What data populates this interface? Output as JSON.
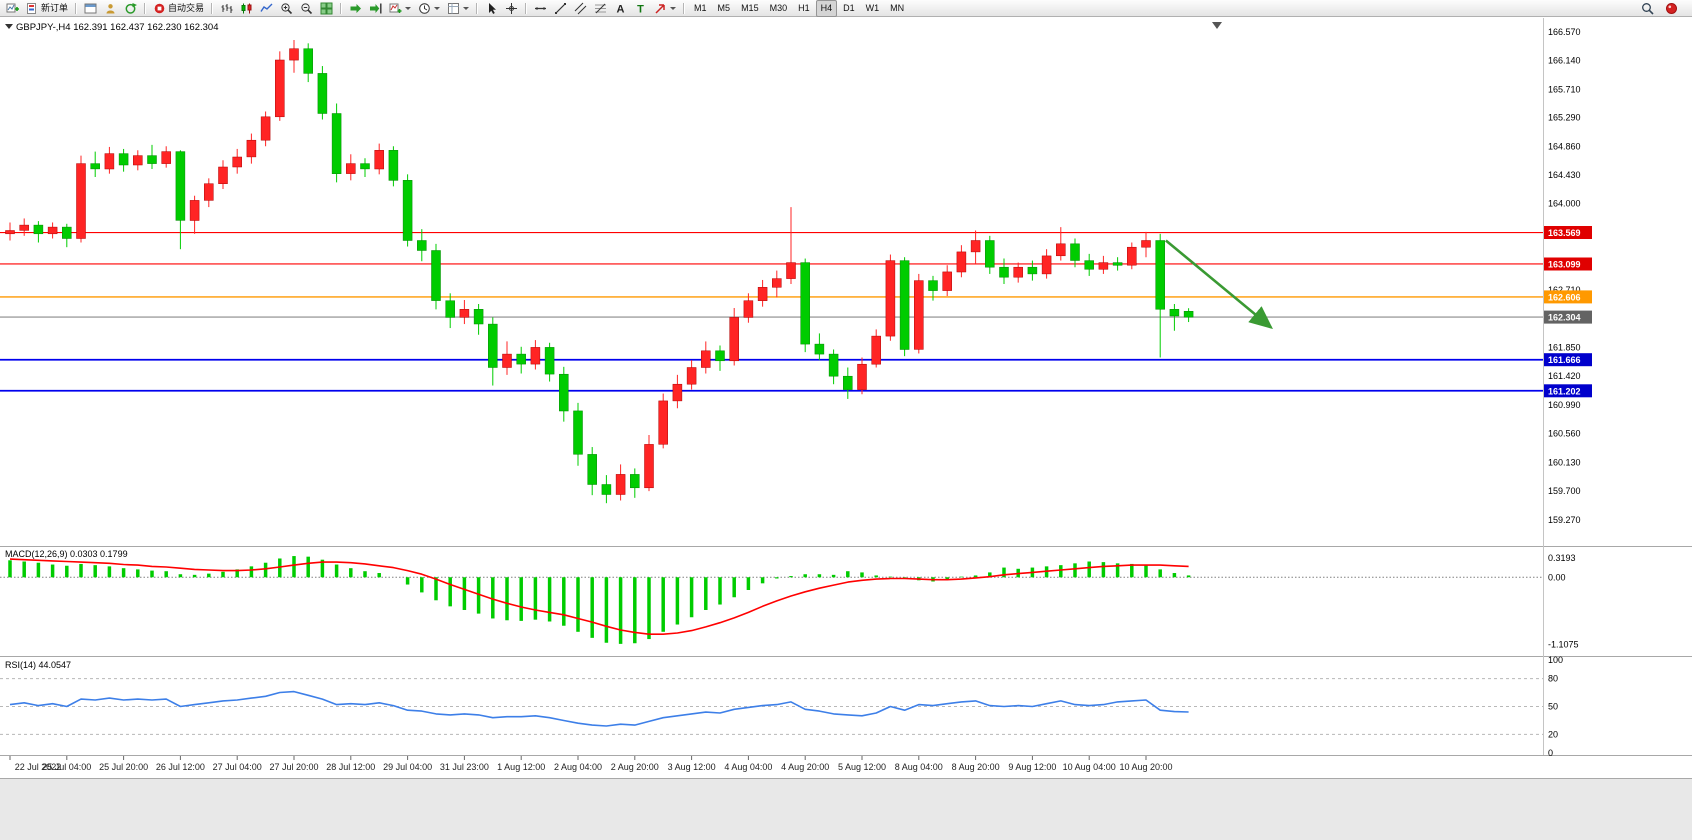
{
  "toolbar": {
    "items": [
      {
        "type": "icon",
        "name": "new-chart-button",
        "icon": "chart-plus"
      },
      {
        "type": "labeled",
        "name": "new-order-button",
        "icon": "new-order",
        "label": "新订单"
      },
      {
        "type": "sep"
      },
      {
        "type": "icon",
        "name": "market-watch-button",
        "icon": "market-watch"
      },
      {
        "type": "icon",
        "name": "navigator-button",
        "icon": "navigator"
      },
      {
        "type": "icon",
        "name": "terminal-button",
        "icon": "terminal"
      },
      {
        "type": "sep"
      },
      {
        "type": "labeled",
        "name": "autotrading-button",
        "icon": "autotrade",
        "label": "自动交易"
      },
      {
        "type": "sep"
      },
      {
        "type": "icon",
        "name": "bar-chart-button",
        "icon": "bars"
      },
      {
        "type": "icon",
        "name": "candlestick-button",
        "icon": "candles"
      },
      {
        "type": "icon",
        "name": "line-chart-button",
        "icon": "line"
      },
      {
        "type": "icon",
        "name": "zoom-in-button",
        "icon": "zoom-in"
      },
      {
        "type": "icon",
        "name": "zoom-out-button",
        "icon": "zoom-out"
      },
      {
        "type": "icon",
        "name": "tile-windows-button",
        "icon": "tile"
      },
      {
        "type": "sep"
      },
      {
        "type": "icon",
        "name": "auto-scroll-button",
        "icon": "auto-scroll"
      },
      {
        "type": "icon",
        "name": "chart-shift-button",
        "icon": "chart-shift"
      },
      {
        "type": "icon-drop",
        "name": "indicators-button",
        "icon": "indicators"
      },
      {
        "type": "icon-drop",
        "name": "periods-button",
        "icon": "clock"
      },
      {
        "type": "icon-drop",
        "name": "templates-button",
        "icon": "template"
      },
      {
        "type": "sep"
      },
      {
        "type": "icon",
        "name": "cursor-button",
        "icon": "cursor"
      },
      {
        "type": "icon",
        "name": "crosshair-button",
        "icon": "crosshair"
      },
      {
        "type": "sep"
      },
      {
        "type": "icon",
        "name": "horizontal-line-button",
        "icon": "hline"
      },
      {
        "type": "icon",
        "name": "trendline-button",
        "icon": "trendline"
      },
      {
        "type": "icon",
        "name": "channel-button",
        "icon": "channel"
      },
      {
        "type": "icon",
        "name": "fibonacci-button",
        "icon": "fibo"
      },
      {
        "type": "icon",
        "name": "text-button",
        "icon": "text-a"
      },
      {
        "type": "icon",
        "name": "text-label-button",
        "icon": "text-t"
      },
      {
        "type": "icon-drop",
        "name": "arrows-button",
        "icon": "arrows"
      },
      {
        "type": "sep"
      },
      {
        "type": "tf",
        "name": "tf-m1-button",
        "label": "M1"
      },
      {
        "type": "tf",
        "name": "tf-m5-button",
        "label": "M5"
      },
      {
        "type": "tf",
        "name": "tf-m15-button",
        "label": "M15"
      },
      {
        "type": "tf",
        "name": "tf-m30-button",
        "label": "M30"
      },
      {
        "type": "tf",
        "name": "tf-h1-button",
        "label": "H1"
      },
      {
        "type": "tf",
        "name": "tf-h4-button",
        "label": "H4",
        "active": true
      },
      {
        "type": "tf",
        "name": "tf-d1-button",
        "label": "D1"
      },
      {
        "type": "tf",
        "name": "tf-w1-button",
        "label": "W1"
      },
      {
        "type": "tf",
        "name": "tf-mn-button",
        "label": "MN"
      }
    ],
    "right_items": [
      {
        "name": "search-button",
        "icon": "search"
      },
      {
        "name": "community-button",
        "icon": "community"
      }
    ]
  },
  "chart": {
    "title": "GBPJPY-,H4 162.391 162.437 162.230 162.304",
    "symbol": "GBPJPY-",
    "timeframe": "H4"
  },
  "chart_data": {
    "type": "candlestick",
    "title": "GBPJPY-,H4 162.391 162.437 162.230 162.304",
    "ohlc_header": {
      "open": 162.391,
      "high": 162.437,
      "low": 162.23,
      "close": 162.304
    },
    "up_color": "#ff2424",
    "down_color": "#00cc00",
    "ylim": [
      158.88,
      166.734
    ],
    "candles": [
      [
        163.55,
        163.72,
        163.45,
        163.6
      ],
      [
        163.6,
        163.78,
        163.52,
        163.68
      ],
      [
        163.68,
        163.74,
        163.42,
        163.55
      ],
      [
        163.55,
        163.72,
        163.48,
        163.65
      ],
      [
        163.65,
        163.7,
        163.35,
        163.48
      ],
      [
        163.48,
        164.72,
        163.42,
        164.6
      ],
      [
        164.6,
        164.78,
        164.4,
        164.52
      ],
      [
        164.52,
        164.85,
        164.45,
        164.75
      ],
      [
        164.75,
        164.82,
        164.48,
        164.58
      ],
      [
        164.58,
        164.8,
        164.5,
        164.72
      ],
      [
        164.72,
        164.88,
        164.52,
        164.6
      ],
      [
        164.6,
        164.86,
        164.54,
        164.78
      ],
      [
        164.78,
        164.8,
        163.32,
        163.75
      ],
      [
        163.75,
        164.12,
        163.55,
        164.05
      ],
      [
        164.05,
        164.38,
        163.95,
        164.3
      ],
      [
        164.3,
        164.65,
        164.22,
        164.55
      ],
      [
        164.55,
        164.82,
        164.45,
        164.7
      ],
      [
        164.7,
        165.05,
        164.6,
        164.95
      ],
      [
        164.95,
        165.38,
        164.86,
        165.3
      ],
      [
        165.3,
        166.28,
        165.24,
        166.15
      ],
      [
        166.15,
        166.45,
        165.96,
        166.32
      ],
      [
        166.32,
        166.4,
        165.82,
        165.95
      ],
      [
        165.95,
        166.06,
        165.26,
        165.35
      ],
      [
        165.35,
        165.5,
        164.32,
        164.45
      ],
      [
        164.45,
        164.74,
        164.35,
        164.6
      ],
      [
        164.6,
        164.68,
        164.4,
        164.52
      ],
      [
        164.52,
        164.9,
        164.44,
        164.8
      ],
      [
        164.8,
        164.86,
        164.26,
        164.35
      ],
      [
        164.35,
        164.44,
        163.36,
        163.45
      ],
      [
        163.45,
        163.62,
        163.14,
        163.3
      ],
      [
        163.3,
        163.4,
        162.42,
        162.55
      ],
      [
        162.55,
        162.66,
        162.14,
        162.3
      ],
      [
        162.3,
        162.56,
        162.2,
        162.42
      ],
      [
        162.42,
        162.5,
        162.04,
        162.2
      ],
      [
        162.2,
        162.3,
        161.28,
        161.55
      ],
      [
        161.55,
        161.94,
        161.44,
        161.75
      ],
      [
        161.75,
        161.86,
        161.46,
        161.6
      ],
      [
        161.6,
        161.96,
        161.52,
        161.85
      ],
      [
        161.85,
        161.92,
        161.34,
        161.45
      ],
      [
        161.45,
        161.56,
        160.74,
        160.9
      ],
      [
        160.9,
        161.02,
        160.08,
        160.25
      ],
      [
        160.25,
        160.36,
        159.64,
        159.8
      ],
      [
        159.8,
        159.94,
        159.52,
        159.65
      ],
      [
        159.65,
        160.1,
        159.56,
        159.95
      ],
      [
        159.95,
        160.04,
        159.6,
        159.75
      ],
      [
        159.75,
        160.54,
        159.7,
        160.4
      ],
      [
        160.4,
        161.16,
        160.34,
        161.05
      ],
      [
        161.05,
        161.44,
        160.94,
        161.3
      ],
      [
        161.3,
        161.66,
        161.22,
        161.55
      ],
      [
        161.55,
        161.94,
        161.46,
        161.8
      ],
      [
        161.8,
        161.88,
        161.5,
        161.65
      ],
      [
        161.65,
        162.44,
        161.58,
        162.3
      ],
      [
        162.3,
        162.66,
        162.22,
        162.55
      ],
      [
        162.55,
        162.86,
        162.46,
        162.75
      ],
      [
        162.75,
        163.0,
        162.6,
        162.88
      ],
      [
        162.88,
        163.95,
        162.8,
        163.12
      ],
      [
        163.12,
        163.18,
        161.78,
        161.9
      ],
      [
        161.9,
        162.06,
        161.66,
        161.75
      ],
      [
        161.75,
        161.82,
        161.3,
        161.42
      ],
      [
        161.42,
        161.55,
        161.08,
        161.22
      ],
      [
        161.22,
        161.7,
        161.15,
        161.6
      ],
      [
        161.6,
        162.12,
        161.55,
        162.02
      ],
      [
        162.02,
        163.24,
        161.95,
        163.15
      ],
      [
        163.15,
        163.2,
        161.72,
        161.82
      ],
      [
        161.82,
        162.95,
        161.76,
        162.85
      ],
      [
        162.85,
        162.92,
        162.55,
        162.7
      ],
      [
        162.7,
        163.08,
        162.62,
        162.98
      ],
      [
        162.98,
        163.38,
        162.9,
        163.28
      ],
      [
        163.28,
        163.6,
        163.1,
        163.45
      ],
      [
        163.45,
        163.52,
        162.95,
        163.05
      ],
      [
        163.05,
        163.18,
        162.8,
        162.9
      ],
      [
        162.9,
        163.12,
        162.82,
        163.05
      ],
      [
        163.05,
        163.15,
        162.85,
        162.95
      ],
      [
        162.95,
        163.32,
        162.88,
        163.22
      ],
      [
        163.22,
        163.65,
        163.15,
        163.4
      ],
      [
        163.4,
        163.48,
        163.05,
        163.15
      ],
      [
        163.15,
        163.25,
        162.92,
        163.02
      ],
      [
        163.02,
        163.22,
        162.95,
        163.12
      ],
      [
        163.12,
        163.2,
        163.0,
        163.08
      ],
      [
        163.08,
        163.42,
        163.02,
        163.35
      ],
      [
        163.35,
        163.58,
        163.2,
        163.45
      ],
      [
        163.45,
        163.55,
        161.7,
        162.42
      ],
      [
        162.42,
        162.5,
        162.1,
        162.32
      ],
      [
        162.391,
        162.437,
        162.23,
        162.304
      ]
    ],
    "time_labels": [
      "22 Jul 2022",
      "25 Jul 04:00",
      "25 Jul 20:00",
      "26 Jul 12:00",
      "27 Jul 04:00",
      "27 Jul 20:00",
      "28 Jul 12:00",
      "29 Jul 04:00",
      "31 Jul 23:00",
      "1 Aug 12:00",
      "2 Aug 04:00",
      "2 Aug 20:00",
      "3 Aug 12:00",
      "4 Aug 04:00",
      "4 Aug 20:00",
      "5 Aug 12:00",
      "8 Aug 04:00",
      "8 Aug 20:00",
      "9 Aug 12:00",
      "10 Aug 04:00",
      "10 Aug 20:00"
    ],
    "label_every": 4,
    "price_axis_labels": [
      "166.570",
      "166.140",
      "165.710",
      "165.290",
      "164.860",
      "164.430",
      "164.000",
      "162.710",
      "161.850",
      "161.420",
      "160.990",
      "160.560",
      "160.130",
      "159.700",
      "159.270"
    ],
    "levels": [
      {
        "price": 163.569,
        "label": "163.569",
        "color": "#ff0000",
        "badge": "#e00000",
        "width": 1.1
      },
      {
        "price": 163.099,
        "label": "163.099",
        "color": "#ff0000",
        "badge": "#e00000",
        "width": 1.1
      },
      {
        "price": 162.606,
        "label": "162.606",
        "color": "#ff9900",
        "badge": "#ff9900",
        "width": 1.3
      },
      {
        "price": 162.304,
        "label": "162.304",
        "color": "#8a8a8a",
        "badge": "#636363",
        "width": 1.1
      },
      {
        "price": 161.666,
        "label": "161.666",
        "color": "#0000ee",
        "badge": "#0000cc",
        "width": 1.7
      },
      {
        "price": 161.202,
        "label": "161.202",
        "color": "#0000ee",
        "badge": "#0000cc",
        "width": 1.7
      }
    ],
    "annotation_arrow": {
      "from_index": 81.4,
      "from_price": 163.45,
      "to_index": 88.8,
      "to_price": 162.15,
      "color": "#3a9a33"
    },
    "indicators": [
      {
        "name": "MACD",
        "label": "MACD(12,26,9) 0.0303 0.1799",
        "histogram_color": "#00cc00",
        "signal_color": "#ff0000",
        "range": [
          -1.25,
          0.45
        ],
        "scale_labels": [
          "0.3193",
          "0.00",
          "-1.1075"
        ],
        "values": [
          0.28,
          0.26,
          0.24,
          0.21,
          0.19,
          0.22,
          0.2,
          0.18,
          0.15,
          0.13,
          0.11,
          0.1,
          0.05,
          0.04,
          0.06,
          0.09,
          0.13,
          0.18,
          0.24,
          0.31,
          0.35,
          0.34,
          0.29,
          0.21,
          0.15,
          0.1,
          0.07,
          0.0,
          -0.12,
          -0.25,
          -0.38,
          -0.48,
          -0.54,
          -0.6,
          -0.68,
          -0.71,
          -0.72,
          -0.7,
          -0.73,
          -0.8,
          -0.9,
          -1.0,
          -1.08,
          -1.1,
          -1.09,
          -1.02,
          -0.9,
          -0.78,
          -0.66,
          -0.54,
          -0.45,
          -0.33,
          -0.21,
          -0.1,
          -0.02,
          0.02,
          0.05,
          0.05,
          0.04,
          0.1,
          0.08,
          0.03,
          0.01,
          -0.01,
          -0.05,
          -0.07,
          -0.04,
          0.01,
          0.03,
          0.08,
          0.16,
          0.14,
          0.16,
          0.18,
          0.2,
          0.23,
          0.26,
          0.25,
          0.23,
          0.22,
          0.21,
          0.13,
          0.07,
          0.0303
        ],
        "signal": [
          0.3,
          0.29,
          0.28,
          0.27,
          0.26,
          0.25,
          0.24,
          0.23,
          0.21,
          0.2,
          0.18,
          0.17,
          0.15,
          0.13,
          0.12,
          0.11,
          0.11,
          0.12,
          0.14,
          0.17,
          0.2,
          0.23,
          0.25,
          0.25,
          0.24,
          0.22,
          0.19,
          0.16,
          0.11,
          0.05,
          -0.03,
          -0.12,
          -0.2,
          -0.28,
          -0.36,
          -0.43,
          -0.49,
          -0.54,
          -0.58,
          -0.62,
          -0.68,
          -0.74,
          -0.81,
          -0.87,
          -0.91,
          -0.94,
          -0.94,
          -0.92,
          -0.88,
          -0.82,
          -0.75,
          -0.67,
          -0.58,
          -0.48,
          -0.39,
          -0.31,
          -0.24,
          -0.18,
          -0.13,
          -0.08,
          -0.05,
          -0.03,
          -0.02,
          -0.02,
          -0.03,
          -0.04,
          -0.04,
          -0.03,
          -0.01,
          0.01,
          0.04,
          0.06,
          0.08,
          0.1,
          0.12,
          0.14,
          0.16,
          0.18,
          0.19,
          0.2,
          0.2,
          0.2,
          0.19,
          0.1799
        ]
      },
      {
        "name": "RSI",
        "label": "RSI(14) 44.0547",
        "line_color": "#3d7fe8",
        "range": [
          0,
          100
        ],
        "levels": [
          80,
          50,
          20
        ],
        "scale_labels": [
          "100",
          "80",
          "50",
          "20",
          "0"
        ],
        "values": [
          52,
          54,
          51,
          53,
          50,
          58,
          57,
          59,
          57,
          58,
          57,
          58,
          50,
          52,
          54,
          56,
          57,
          59,
          61,
          65,
          66,
          62,
          58,
          52,
          53,
          52,
          54,
          51,
          46,
          45,
          42,
          41,
          42,
          41,
          38,
          39,
          39,
          40,
          38,
          35,
          32,
          30,
          29,
          31,
          30,
          34,
          38,
          40,
          42,
          44,
          43,
          47,
          49,
          51,
          52,
          55,
          47,
          45,
          42,
          41,
          40,
          43,
          50,
          46,
          52,
          51,
          53,
          55,
          56,
          51,
          50,
          51,
          50,
          53,
          56,
          52,
          51,
          52,
          55,
          56,
          57,
          46,
          44.5,
          44.0547
        ]
      }
    ]
  }
}
